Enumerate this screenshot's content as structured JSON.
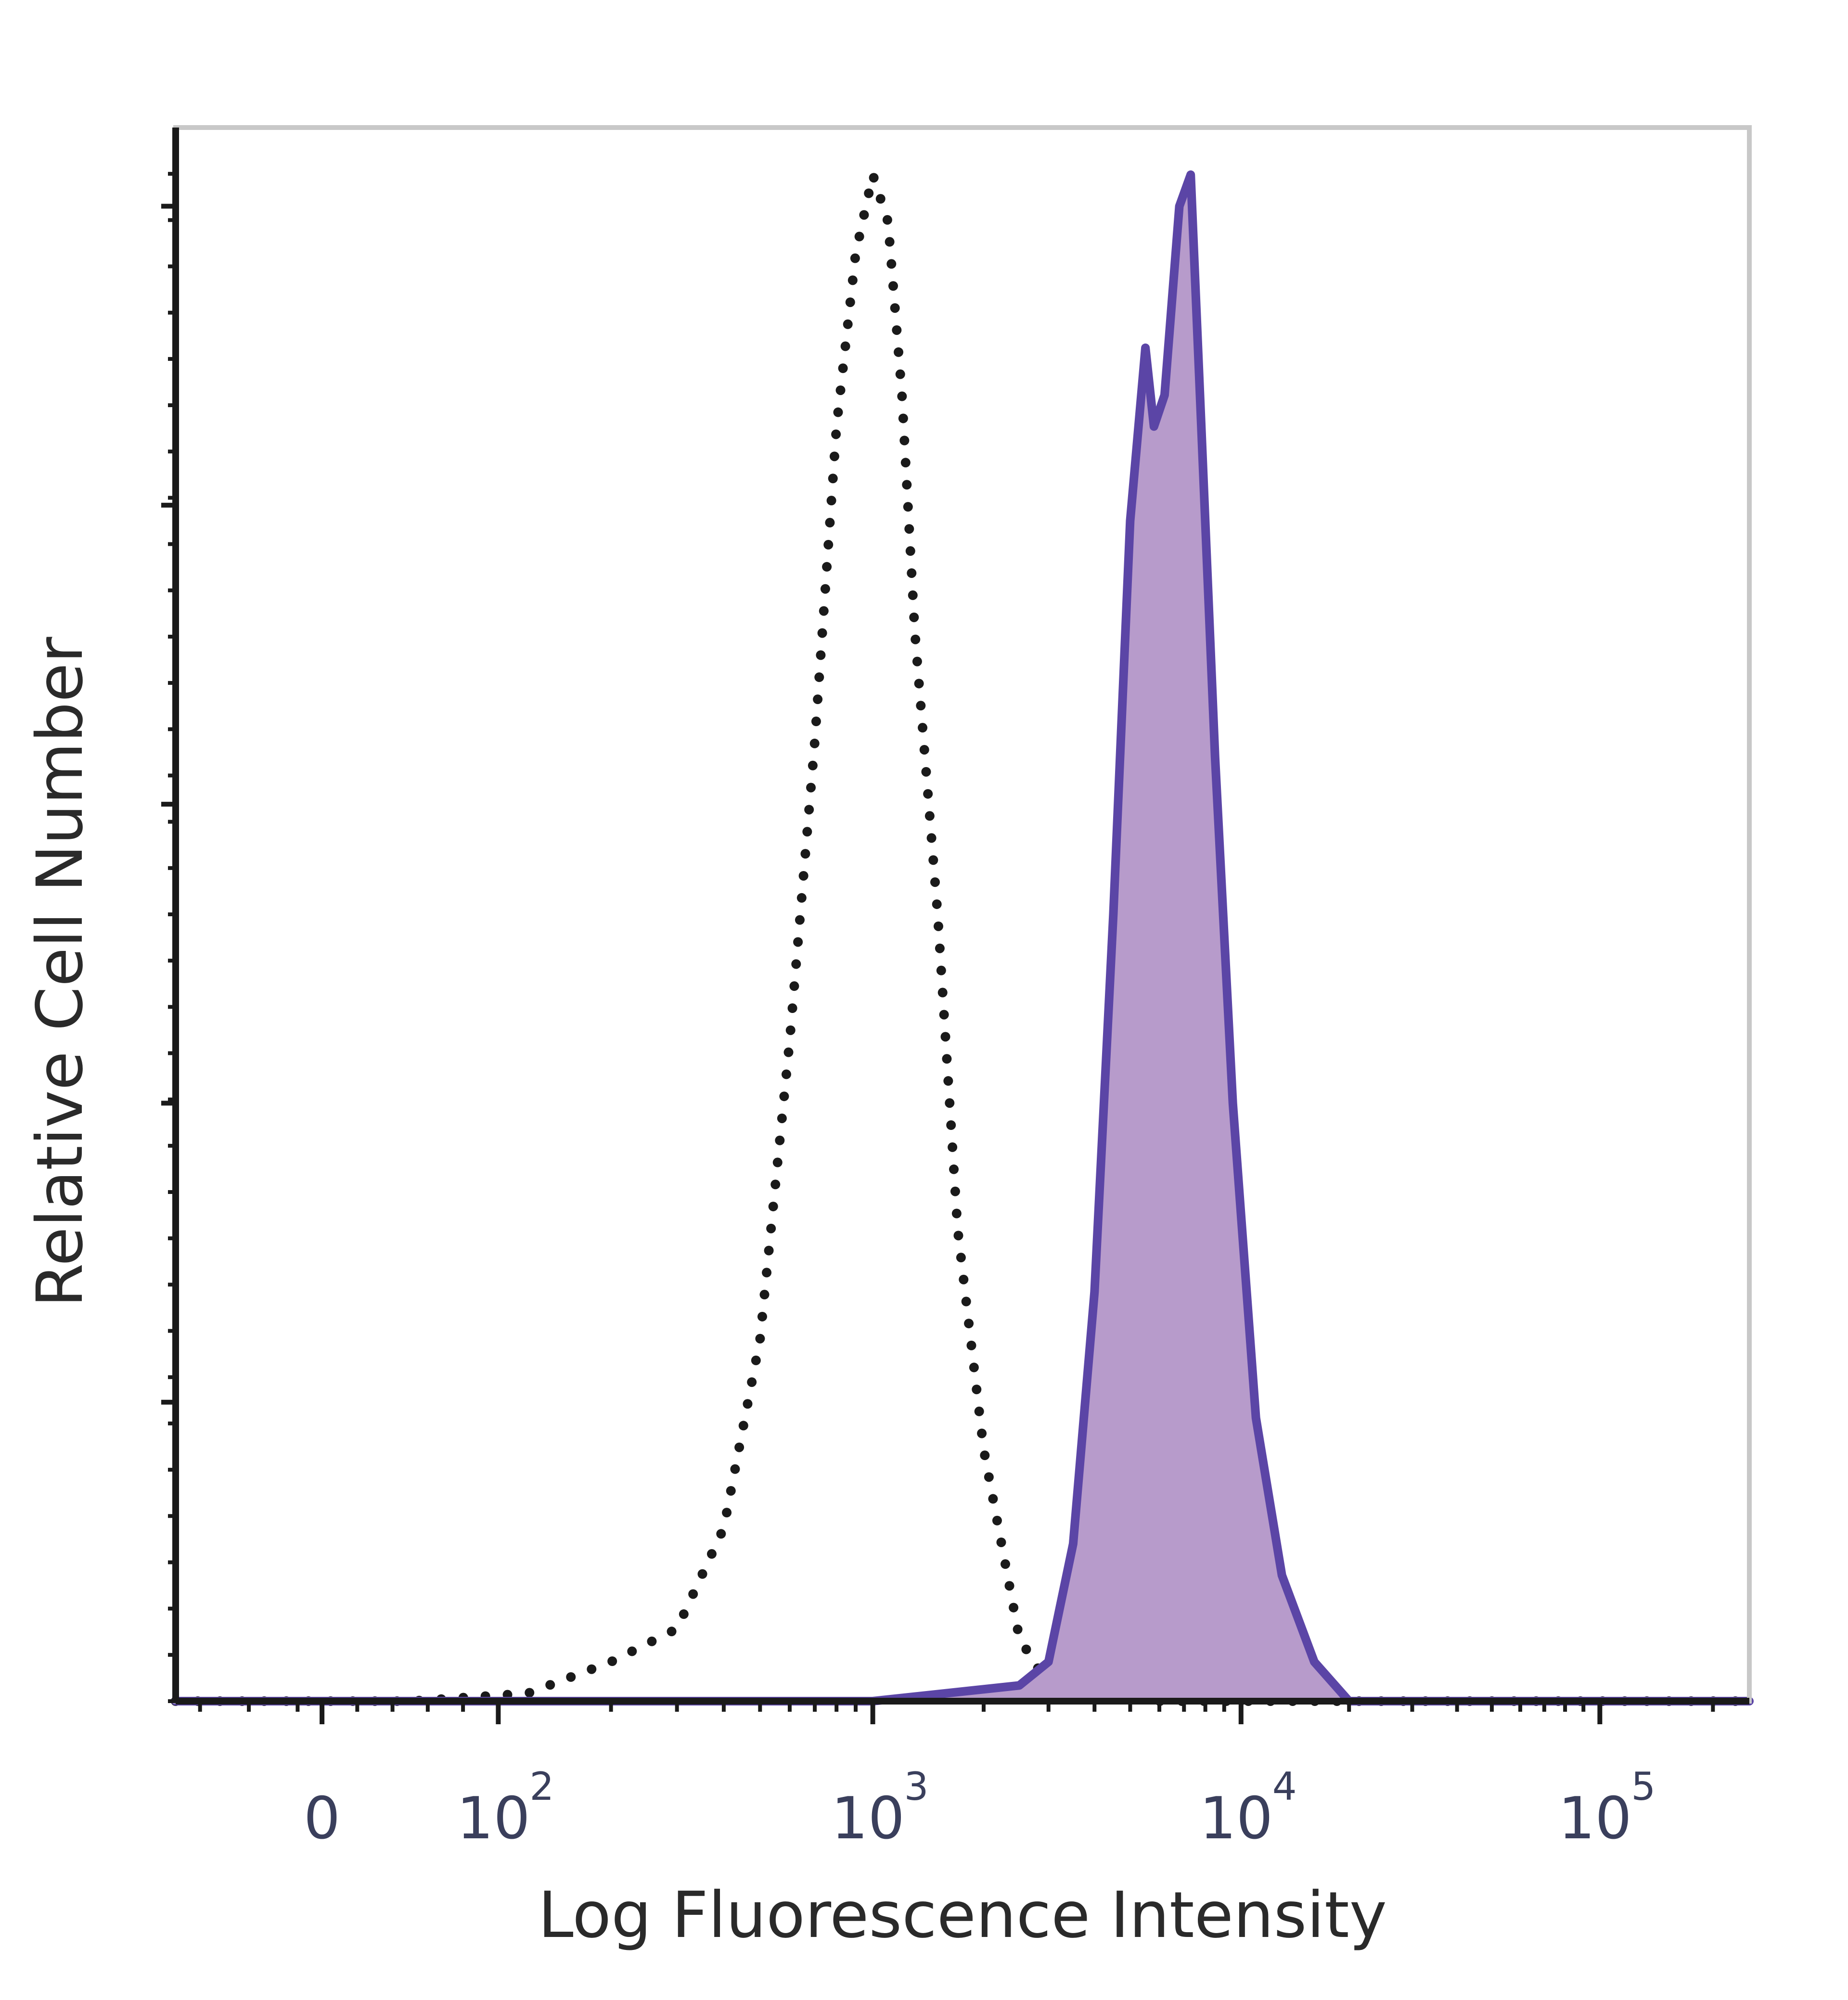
{
  "chart_data": {
    "type": "area",
    "xlabel": "Log Fluorescence Intensity",
    "ylabel": "Relative Cell Number",
    "x_scale": "biexponential",
    "xlim": [
      -60,
      250000
    ],
    "ylim": [
      0,
      100
    ],
    "grid": false,
    "x_ticks": [
      {
        "value": 0,
        "base": "0",
        "exp": ""
      },
      {
        "value": 100,
        "base": "10",
        "exp": "2"
      },
      {
        "value": 1000,
        "base": "10",
        "exp": "3"
      },
      {
        "value": 10000,
        "base": "10",
        "exp": "4"
      },
      {
        "value": 100000,
        "base": "10",
        "exp": "5"
      }
    ],
    "series": [
      {
        "style": "dotted",
        "color": "#1a1a1a",
        "fill": false,
        "x": [
          -60,
          50,
          120,
          200,
          300,
          400,
          500,
          600,
          700,
          800,
          900,
          1000,
          1100,
          1200,
          1300,
          1500,
          1700,
          2000,
          2500,
          3000,
          4000,
          6000,
          10000,
          20000,
          250000
        ],
        "y": [
          0,
          0,
          0.5,
          2.5,
          4.6,
          11,
          23,
          42,
          61,
          81,
          92,
          97,
          94,
          83,
          68,
          50,
          30,
          16,
          4,
          1,
          0.4,
          0,
          0,
          0,
          0
        ]
      },
      {
        "style": "solid",
        "color": "#5b45a6",
        "fill": true,
        "fill_color": "#b79bcb",
        "x": [
          -60,
          1000,
          2500,
          3000,
          3500,
          4000,
          4500,
          5000,
          5500,
          5800,
          6200,
          6800,
          7300,
          7800,
          8500,
          9500,
          11000,
          13000,
          16000,
          20000,
          250000
        ],
        "y": [
          0,
          0,
          1,
          2.5,
          10,
          26,
          50,
          75,
          86,
          81,
          83,
          95,
          97,
          81,
          60,
          38,
          18,
          8,
          2.5,
          0,
          0
        ]
      }
    ]
  }
}
